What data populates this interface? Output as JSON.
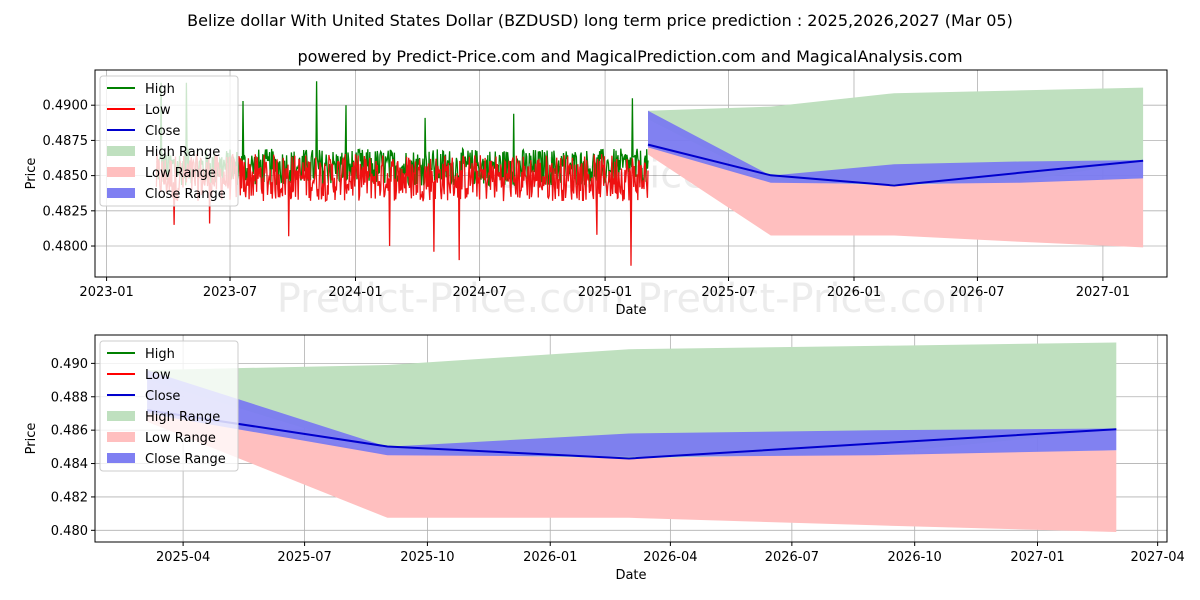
{
  "chart_data": [
    {
      "type": "line",
      "panel": "top",
      "title": "Belize dollar With United States Dollar (BZDUSD) long term price prediction : 2025,2026,2027 (Mar 05)",
      "subtitle": "powered by Predict-Price.com and MagicalPrediction.com and MagicalAnalysis.com",
      "watermark": "Predict-Price.com",
      "xlabel": "Date",
      "ylabel": "Price",
      "xlim": [
        "2022-12-15",
        "2027-04-05"
      ],
      "ylim": [
        0.4778,
        0.4925
      ],
      "xticks": [
        {
          "date": "2023-01-01",
          "label": "2023-01"
        },
        {
          "date": "2023-07-01",
          "label": "2023-07"
        },
        {
          "date": "2024-01-01",
          "label": "2024-01"
        },
        {
          "date": "2024-07-01",
          "label": "2024-07"
        },
        {
          "date": "2025-01-01",
          "label": "2025-01"
        },
        {
          "date": "2025-07-01",
          "label": "2025-07"
        },
        {
          "date": "2026-01-01",
          "label": "2026-01"
        },
        {
          "date": "2026-07-01",
          "label": "2026-07"
        },
        {
          "date": "2027-01-01",
          "label": "2027-01"
        }
      ],
      "yticks": [
        {
          "value": 0.48,
          "label": "0.4800"
        },
        {
          "value": 0.4825,
          "label": "0.4825"
        },
        {
          "value": 0.485,
          "label": "0.4850"
        },
        {
          "value": 0.4875,
          "label": "0.4875"
        },
        {
          "value": 0.49,
          "label": "0.4900"
        }
      ],
      "grid": true,
      "legend_position": "top-left",
      "history": {
        "start": "2023-03-15",
        "end": "2025-03-05",
        "base": 0.4852,
        "high_noise": 0.0012,
        "low_noise": 0.0014,
        "high_spikes": [
          {
            "date": "2023-03-22",
            "value": 0.4916
          },
          {
            "date": "2023-04-28",
            "value": 0.4916
          },
          {
            "date": "2023-07-20",
            "value": 0.4903
          },
          {
            "date": "2023-11-05",
            "value": 0.4917
          },
          {
            "date": "2023-12-18",
            "value": 0.49
          },
          {
            "date": "2024-04-12",
            "value": 0.4891
          },
          {
            "date": "2024-08-20",
            "value": 0.4894
          },
          {
            "date": "2025-02-10",
            "value": 0.4905
          }
        ],
        "low_spikes": [
          {
            "date": "2023-04-10",
            "value": 0.4815
          },
          {
            "date": "2023-06-01",
            "value": 0.4816
          },
          {
            "date": "2023-09-25",
            "value": 0.4807
          },
          {
            "date": "2024-02-20",
            "value": 0.48
          },
          {
            "date": "2024-04-25",
            "value": 0.4796
          },
          {
            "date": "2024-06-01",
            "value": 0.479
          },
          {
            "date": "2024-12-20",
            "value": 0.4808
          },
          {
            "date": "2025-02-08",
            "value": 0.4786
          }
        ]
      }
    },
    {
      "type": "line",
      "panel": "bottom",
      "watermark": "Predict-Price.com",
      "xlabel": "Date",
      "ylabel": "Price",
      "xlim": [
        "2025-01-25",
        "2027-04-08"
      ],
      "ylim": [
        0.4793,
        0.4917
      ],
      "xticks": [
        {
          "date": "2025-04-01",
          "label": "2025-04"
        },
        {
          "date": "2025-07-01",
          "label": "2025-07"
        },
        {
          "date": "2025-10-01",
          "label": "2025-10"
        },
        {
          "date": "2026-01-01",
          "label": "2026-01"
        },
        {
          "date": "2026-04-01",
          "label": "2026-04"
        },
        {
          "date": "2026-07-01",
          "label": "2026-07"
        },
        {
          "date": "2026-10-01",
          "label": "2026-10"
        },
        {
          "date": "2027-01-01",
          "label": "2027-01"
        },
        {
          "date": "2027-04-01",
          "label": "2027-04"
        }
      ],
      "yticks": [
        {
          "value": 0.48,
          "label": "0.480"
        },
        {
          "value": 0.482,
          "label": "0.482"
        },
        {
          "value": 0.484,
          "label": "0.484"
        },
        {
          "value": 0.486,
          "label": "0.486"
        },
        {
          "value": 0.488,
          "label": "0.488"
        },
        {
          "value": 0.49,
          "label": "0.490"
        }
      ],
      "grid": true,
      "legend_position": "top-left"
    }
  ],
  "forecast": {
    "dates": [
      "2025-03-05",
      "2025-09-01",
      "2026-03-01",
      "2026-09-01",
      "2027-03-01"
    ],
    "close": [
      0.4872,
      0.48502,
      0.4843,
      0.4852,
      0.48606
    ],
    "high_range_top": [
      0.4896,
      0.4899,
      0.49085,
      0.49105,
      0.49125
    ],
    "high_range_bottom": [
      0.489,
      0.4846,
      0.4843,
      0.4846,
      0.486
    ],
    "low_range_top": [
      0.4872,
      0.4846,
      0.4843,
      0.4846,
      0.4848
    ],
    "low_range_bottom": [
      0.4865,
      0.48075,
      0.48075,
      0.4803,
      0.4799
    ],
    "close_range_top": [
      0.4896,
      0.485,
      0.4858,
      0.486,
      0.4861
    ],
    "close_range_bottom": [
      0.487,
      0.4845,
      0.4844,
      0.4845,
      0.4848
    ]
  },
  "legend": [
    {
      "key": "high",
      "label": "High",
      "kind": "line",
      "color": "#008000"
    },
    {
      "key": "low",
      "label": "Low",
      "kind": "line",
      "color": "#ff0000"
    },
    {
      "key": "close",
      "label": "Close",
      "kind": "line",
      "color": "#0000cd"
    },
    {
      "key": "high_range",
      "label": "High Range",
      "kind": "patch",
      "color": "#bfe0bf"
    },
    {
      "key": "low_range",
      "label": "Low Range",
      "kind": "patch",
      "color": "#ffbfbf"
    },
    {
      "key": "close_range",
      "label": "Close Range",
      "kind": "patch",
      "color": "#7f7ff2"
    }
  ],
  "colors": {
    "high": "#008000",
    "low": "#ee1111",
    "close": "#0000cd",
    "high_range": "#bfe0bf",
    "low_range": "#ffbfbf",
    "close_range": "#7a7af0",
    "grid": "#b0b0b0"
  }
}
